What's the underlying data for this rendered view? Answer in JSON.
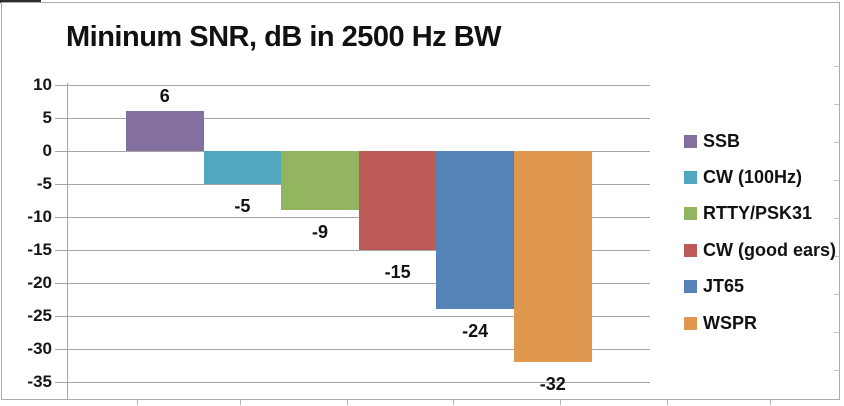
{
  "chart_data": {
    "type": "bar",
    "title": "Mininum SNR, dB in 2500 Hz BW",
    "xlabel": "",
    "ylabel": "",
    "ylim": [
      -35,
      10
    ],
    "yticks": [
      10,
      5,
      0,
      -5,
      -10,
      -15,
      -20,
      -25,
      -30,
      -35
    ],
    "grid": true,
    "legend_position": "right",
    "series": [
      {
        "name": "SSB",
        "value": 6,
        "label": "6",
        "color": "#83709f"
      },
      {
        "name": "CW (100Hz)",
        "value": -5,
        "label": "-5",
        "color": "#4fa8bd"
      },
      {
        "name": "RTTY/PSK31",
        "value": -9,
        "label": "-9",
        "color": "#94b55f"
      },
      {
        "name": "CW (good ears)",
        "value": -15,
        "label": "-15",
        "color": "#bb5a56"
      },
      {
        "name": "JT65",
        "value": -24,
        "label": "-24",
        "color": "#5583b7"
      },
      {
        "name": "WSPR",
        "value": -32,
        "label": "-32",
        "color": "#e0984e"
      }
    ]
  },
  "colors": {
    "gridline": "#a6a6a6",
    "axis": "#a6a6a6",
    "frame_border": "#ababab",
    "text": "#111111"
  }
}
